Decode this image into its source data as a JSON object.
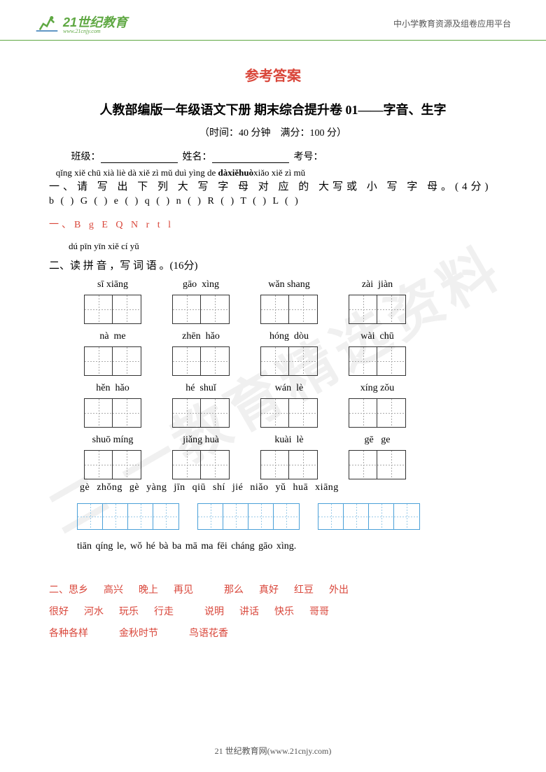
{
  "header": {
    "logo_text": "21世纪教育",
    "logo_sub": "www.21cnjy.com",
    "right_text": "中小学教育资源及组卷应用平台"
  },
  "watermark": "二 一教育精选资料",
  "title_answer": "参考答案",
  "title_main": "人教部编版一年级语文下册 期末综合提升卷 01——字音、生字",
  "meta": "（时间：40 分钟　满分：100 分）",
  "labels": {
    "class": "班级：",
    "name": "姓名：",
    "id": "考号："
  },
  "q1": {
    "pinyin_line": "qǐng xiě chū xià liè dà xiě zì mǔ duì yìng de dàxiěhuòxiǎo xiě zì mǔ",
    "hanzi_line": "一、请 写 出 下 列 大 写 字 母 对 应 的 大写或 小 写 字 母。(4分)",
    "letters": "b (   )    G (   )    e (   )    q (   )    n (   )    R (   )    T (   )    L (   )",
    "answer": "一、B g E Q   N r t l"
  },
  "q2": {
    "pinyin_head": "dú pīn yīn  xiě cí yǔ",
    "hanzi_head": "二、读 拼 音 ，写 词 语 。(16分)",
    "rows": [
      [
        "sī xiāng",
        "gāo  xìng",
        "wǎn shang",
        "zài  jiàn"
      ],
      [
        "nà  me",
        "zhēn  hǎo",
        "hóng  dòu",
        "wài  chū"
      ],
      [
        "hěn  hǎo",
        "hé  shuǐ",
        "wán  lè",
        "xíng zǒu"
      ],
      [
        "shuō míng",
        "jiǎng huà",
        "kuài  lè",
        "gē   ge"
      ]
    ],
    "long_pinyin": "gè zhǒng gè yàng   jīn  qiū shí  jié   niǎo  yǔ  huā xiāng",
    "sentence": "tiān qíng le, wǒ hé bà ba mā ma fēi cháng gāo xìng.",
    "answers": [
      [
        "二、思乡",
        "高兴",
        "晚上",
        "再见",
        "",
        "那么",
        "真好",
        "红豆",
        "外出"
      ],
      [
        "很好",
        "河水",
        "玩乐",
        "行走",
        "",
        "说明",
        "讲话",
        "快乐",
        "哥哥"
      ],
      [
        "各种各样",
        "",
        "金秋时节",
        "",
        "鸟语花香"
      ]
    ]
  },
  "footer": "21 世纪教育网(www.21cnjy.com)",
  "colors": {
    "accent_red": "#d9463a",
    "accent_green": "#5fa843",
    "grid_blue": "#4aa0d8"
  }
}
